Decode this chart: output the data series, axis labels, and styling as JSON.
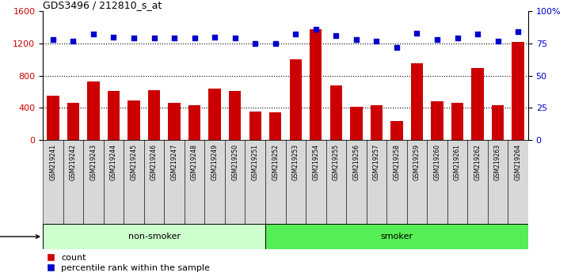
{
  "title": "GDS3496 / 212810_s_at",
  "samples": [
    "GSM219241",
    "GSM219242",
    "GSM219243",
    "GSM219244",
    "GSM219245",
    "GSM219246",
    "GSM219247",
    "GSM219248",
    "GSM219249",
    "GSM219250",
    "GSM219251",
    "GSM219252",
    "GSM219253",
    "GSM219254",
    "GSM219255",
    "GSM219256",
    "GSM219257",
    "GSM219258",
    "GSM219259",
    "GSM219260",
    "GSM219261",
    "GSM219262",
    "GSM219263",
    "GSM219264"
  ],
  "counts": [
    550,
    460,
    730,
    610,
    490,
    620,
    460,
    430,
    640,
    610,
    350,
    340,
    1000,
    1380,
    680,
    410,
    430,
    240,
    950,
    480,
    460,
    890,
    430,
    1220
  ],
  "percentile_ranks": [
    78,
    77,
    82,
    80,
    79,
    79,
    79,
    79,
    80,
    79,
    75,
    75,
    82,
    86,
    81,
    78,
    77,
    72,
    83,
    78,
    79,
    82,
    77,
    84
  ],
  "non_smoker_count": 11,
  "smoker_count": 13,
  "bar_color": "#cc0000",
  "dot_color": "#0000cc",
  "non_smoker_color": "#ccffcc",
  "smoker_color": "#55ee55",
  "left_ylim": [
    0,
    1600
  ],
  "right_ylim": [
    0,
    100
  ],
  "left_yticks": [
    0,
    400,
    800,
    1200,
    1600
  ],
  "right_yticks": [
    0,
    25,
    50,
    75,
    100
  ],
  "grid_values": [
    400,
    800,
    1200
  ]
}
